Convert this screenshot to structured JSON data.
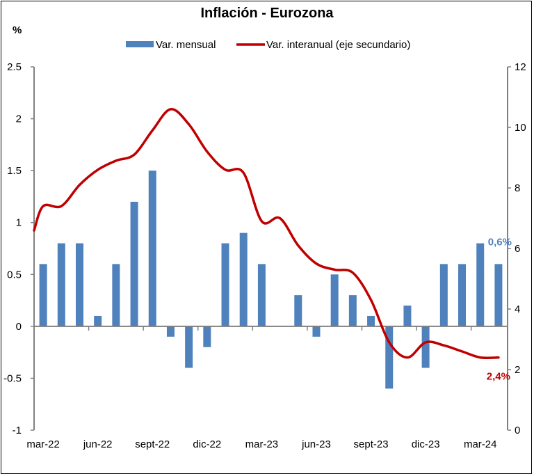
{
  "chart_data": {
    "type": "bar+line",
    "title": "Inflación - Eurozona",
    "ylabel": "%",
    "xlabel": "",
    "categories": [
      "mar-22",
      "abr-22",
      "may-22",
      "jun-22",
      "jul-22",
      "ago-22",
      "sept-22",
      "oct-22",
      "nov-22",
      "dic-22",
      "ene-23",
      "feb-23",
      "mar-23",
      "abr-23",
      "may-23",
      "jun-23",
      "jul-23",
      "ago-23",
      "sept-23",
      "oct-23",
      "nov-23",
      "dic-23",
      "ene-24",
      "feb-24",
      "mar-24",
      "abr-24"
    ],
    "x_tick_labels": [
      "mar-22",
      "jun-22",
      "sept-22",
      "dic-22",
      "mar-23",
      "jun-23",
      "sept-23",
      "dic-23",
      "mar-24"
    ],
    "series": [
      {
        "name": "Var. mensual",
        "type": "bar",
        "axis": "primary",
        "color": "#4F81BD",
        "values": [
          0.6,
          0.8,
          0.8,
          0.1,
          0.6,
          1.2,
          1.5,
          -0.1,
          -0.4,
          -0.2,
          0.8,
          0.9,
          0.6,
          0.0,
          0.3,
          -0.1,
          0.5,
          0.3,
          0.1,
          -0.6,
          0.2,
          -0.4,
          0.6,
          0.6,
          0.8,
          0.6
        ]
      },
      {
        "name": "Var. interanual (eje secundario)",
        "type": "line",
        "axis": "secondary",
        "color": "#C00000",
        "values": [
          7.4,
          7.4,
          8.1,
          8.6,
          8.9,
          9.1,
          9.9,
          10.6,
          10.1,
          9.2,
          8.6,
          8.5,
          6.9,
          7.0,
          6.1,
          5.5,
          5.3,
          5.2,
          4.3,
          2.9,
          2.4,
          2.9,
          2.8,
          2.6,
          2.4,
          2.4
        ]
      }
    ],
    "y_primary": {
      "range": [
        -1,
        2.5
      ],
      "ticks": [
        -1,
        -0.5,
        0,
        0.5,
        1,
        1.5,
        2,
        2.5
      ],
      "tick_labels": [
        "-1",
        "-0.5",
        "0",
        "0.5",
        "1",
        "1.5",
        "2",
        "2.5"
      ]
    },
    "y_secondary": {
      "range": [
        0,
        12
      ],
      "ticks": [
        0,
        2,
        4,
        6,
        8,
        10,
        12
      ],
      "tick_labels": [
        "0",
        "2",
        "4",
        "6",
        "8",
        "10",
        "12"
      ]
    },
    "legend": {
      "placement": "top-center",
      "entries": [
        "Var. mensual",
        "Var. interanual (eje secundario)"
      ]
    },
    "annotations": [
      {
        "text": "0,6%",
        "series": "Var. mensual",
        "color": "#4F81BD"
      },
      {
        "text": "2,4%",
        "series": "Var. interanual (eje secundario)",
        "color": "#C00000"
      }
    ],
    "grid": false,
    "axis_color": "#808080"
  }
}
